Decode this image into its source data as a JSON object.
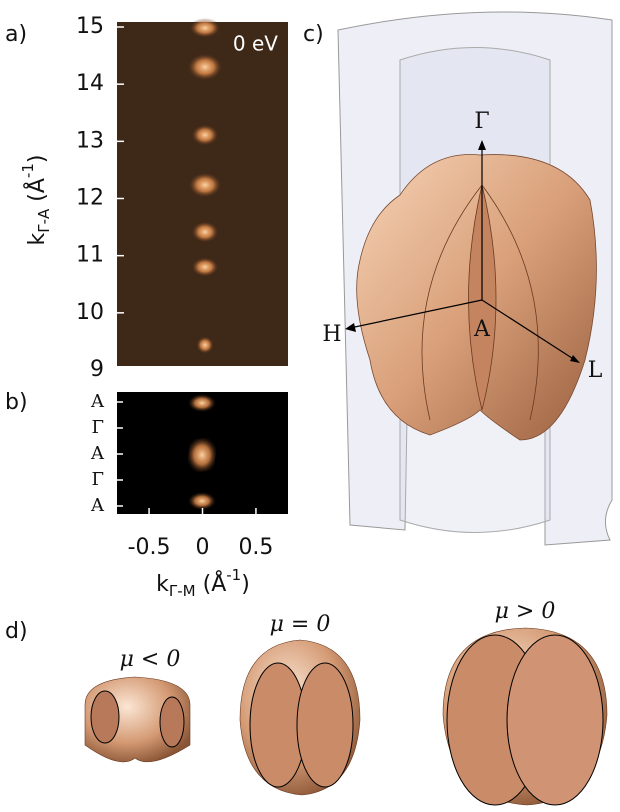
{
  "panels": {
    "a": {
      "label": "a)",
      "annotation": "0 eV",
      "ylim": [
        9,
        15
      ],
      "yticks": [
        9,
        10,
        11,
        12,
        13,
        14,
        15
      ],
      "y_label": {
        "main": "k",
        "sub": "Γ-A",
        "unit": " (Å",
        "sup": "-1",
        "close": ")"
      }
    },
    "b": {
      "label": "b)",
      "categories": [
        "A",
        "Γ",
        "A",
        "Γ",
        "A"
      ],
      "xlim": [
        -0.8,
        0.8
      ],
      "xticks": [
        -0.5,
        0,
        0.5
      ],
      "x_label": {
        "main": "k",
        "sub": "Γ-M",
        "unit": " (Å",
        "sup": "-1",
        "close": ")"
      }
    },
    "c": {
      "label": "c)",
      "axis_labels": {
        "gamma": "Γ",
        "a": "A",
        "h": "H",
        "l": "L"
      }
    },
    "d": {
      "label": "d)",
      "captions": [
        "μ < 0",
        "μ = 0",
        "μ > 0"
      ]
    }
  }
}
